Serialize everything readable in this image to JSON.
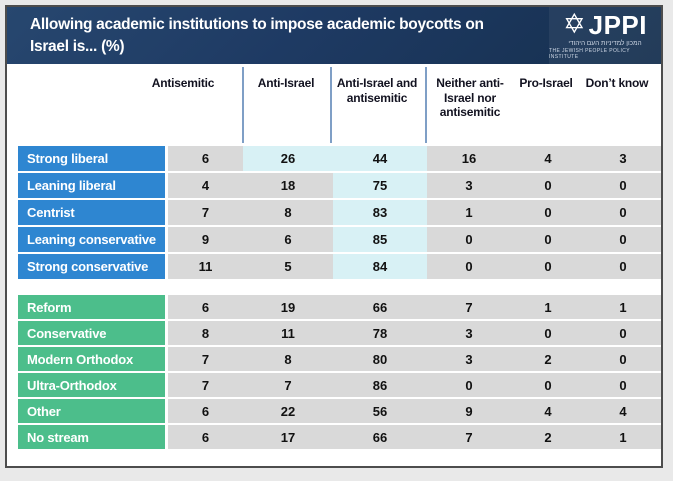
{
  "header": {
    "title_line1": "Allowing academic institutions to impose academic boycotts on",
    "title_line2": "Israel is... (%)"
  },
  "logo": {
    "star_icon": "star-of-david",
    "wordmark": "JPPI",
    "hebrew": "המכון למדיניות העם היהודי",
    "subtitle": "THE JEWISH PEOPLE POLICY INSTITUTE"
  },
  "colors": {
    "titlebar_navy": "#1e3a63",
    "political_row_blue": "#2e86d1",
    "denomination_row_green": "#4cbe8b",
    "cell_gray": "#d9d9d9",
    "cell_highlight_cyan": "#d8f1f5",
    "divider_blue": "#7f9fc6"
  },
  "table": {
    "columns": [
      "Antisemitic",
      "Anti-Israel",
      "Anti-Israel and antisemitic",
      "Neither anti-Israel nor antisemitic",
      "Pro-Israel",
      "Don’t know"
    ],
    "groups": [
      {
        "name": "group-blue",
        "color": "#2e86d1",
        "rows": [
          {
            "label": "Strong liberal",
            "values": [
              6,
              26,
              44,
              16,
              4,
              3
            ],
            "highlight": [
              1,
              2
            ]
          },
          {
            "label": "Leaning liberal",
            "values": [
              4,
              18,
              75,
              3,
              0,
              0
            ],
            "highlight": [
              2
            ]
          },
          {
            "label": "Centrist",
            "values": [
              7,
              8,
              83,
              1,
              0,
              0
            ],
            "highlight": [
              2
            ]
          },
          {
            "label": "Leaning conservative",
            "values": [
              9,
              6,
              85,
              0,
              0,
              0
            ],
            "highlight": [
              2
            ]
          },
          {
            "label": "Strong conservative",
            "values": [
              11,
              5,
              84,
              0,
              0,
              0
            ],
            "highlight": [
              2
            ]
          }
        ]
      },
      {
        "name": "group-green",
        "color": "#4cbe8b",
        "rows": [
          {
            "label": "Reform",
            "values": [
              6,
              19,
              66,
              7,
              1,
              1
            ],
            "highlight": []
          },
          {
            "label": "Conservative",
            "values": [
              8,
              11,
              78,
              3,
              0,
              0
            ],
            "highlight": []
          },
          {
            "label": "Modern Orthodox",
            "values": [
              7,
              8,
              80,
              3,
              2,
              0
            ],
            "highlight": []
          },
          {
            "label": "Ultra-Orthodox",
            "values": [
              7,
              7,
              86,
              0,
              0,
              0
            ],
            "highlight": []
          },
          {
            "label": "Other",
            "values": [
              6,
              22,
              56,
              9,
              4,
              4
            ],
            "highlight": []
          },
          {
            "label": "No stream",
            "values": [
              6,
              17,
              66,
              7,
              2,
              1
            ],
            "highlight": []
          }
        ]
      }
    ]
  },
  "chart_data": {
    "type": "table",
    "title": "Allowing academic institutions to impose academic boycotts on Israel is... (%)",
    "columns": [
      "Antisemitic",
      "Anti-Israel",
      "Anti-Israel and antisemitic",
      "Neither anti-Israel nor antisemitic",
      "Pro-Israel",
      "Don’t know"
    ],
    "rows": [
      {
        "category": "Strong liberal",
        "values": [
          6,
          26,
          44,
          16,
          4,
          3
        ]
      },
      {
        "category": "Leaning liberal",
        "values": [
          4,
          18,
          75,
          3,
          0,
          0
        ]
      },
      {
        "category": "Centrist",
        "values": [
          7,
          8,
          83,
          1,
          0,
          0
        ]
      },
      {
        "category": "Leaning conservative",
        "values": [
          9,
          6,
          85,
          0,
          0,
          0
        ]
      },
      {
        "category": "Strong conservative",
        "values": [
          11,
          5,
          84,
          0,
          0,
          0
        ]
      },
      {
        "category": "Reform",
        "values": [
          6,
          19,
          66,
          7,
          1,
          1
        ]
      },
      {
        "category": "Conservative",
        "values": [
          8,
          11,
          78,
          3,
          0,
          0
        ]
      },
      {
        "category": "Modern Orthodox",
        "values": [
          7,
          8,
          80,
          3,
          2,
          0
        ]
      },
      {
        "category": "Ultra-Orthodox",
        "values": [
          7,
          7,
          86,
          0,
          0,
          0
        ]
      },
      {
        "category": "Other",
        "values": [
          6,
          22,
          56,
          9,
          4,
          4
        ]
      },
      {
        "category": "No stream",
        "values": [
          6,
          17,
          66,
          7,
          2,
          1
        ]
      }
    ],
    "highlighted_cells": "largest response per row shaded light cyan; units are percent"
  }
}
